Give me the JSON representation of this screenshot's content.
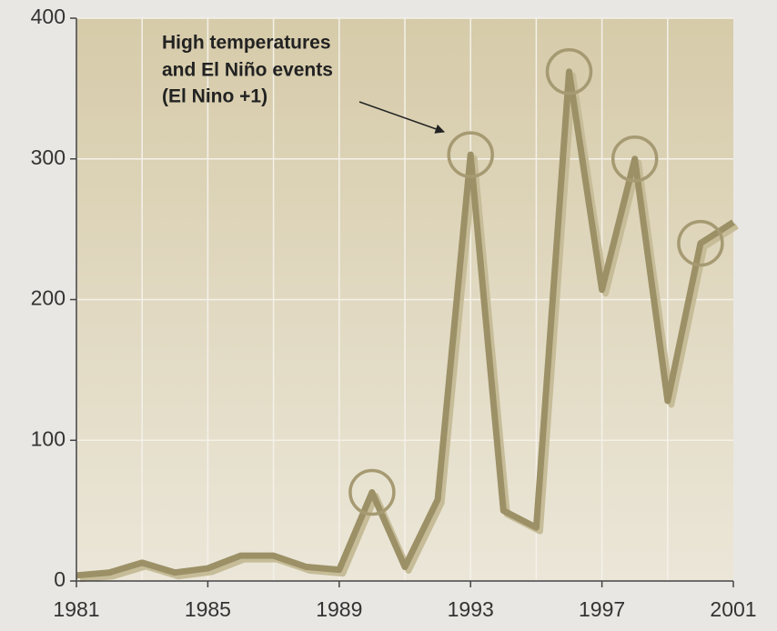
{
  "chart_data": {
    "type": "line",
    "x": [
      1981,
      1982,
      1983,
      1984,
      1985,
      1986,
      1987,
      1988,
      1989,
      1990,
      1991,
      1992,
      1993,
      1994,
      1995,
      1996,
      1997,
      1998,
      1999,
      2000,
      2001
    ],
    "values": [
      4,
      6,
      13,
      6,
      9,
      18,
      18,
      10,
      8,
      63,
      10,
      58,
      303,
      50,
      38,
      362,
      207,
      300,
      128,
      240,
      255
    ],
    "color": "#9c9066",
    "xlim": [
      1981,
      2001
    ],
    "xticks": [
      1981,
      1985,
      1989,
      1993,
      1997,
      2001
    ],
    "xgrid": [
      1983,
      1985,
      1987,
      1989,
      1991,
      1993,
      1995,
      1997,
      1999
    ],
    "ylim": [
      0,
      400
    ],
    "yticks": [
      0,
      100,
      200,
      300,
      400
    ],
    "grid": true,
    "highlights": [
      1990,
      1993,
      1996,
      1998,
      2000
    ],
    "annotation": [
      "High temperatures",
      "and El Niño events",
      "(El Nino +1)"
    ]
  }
}
